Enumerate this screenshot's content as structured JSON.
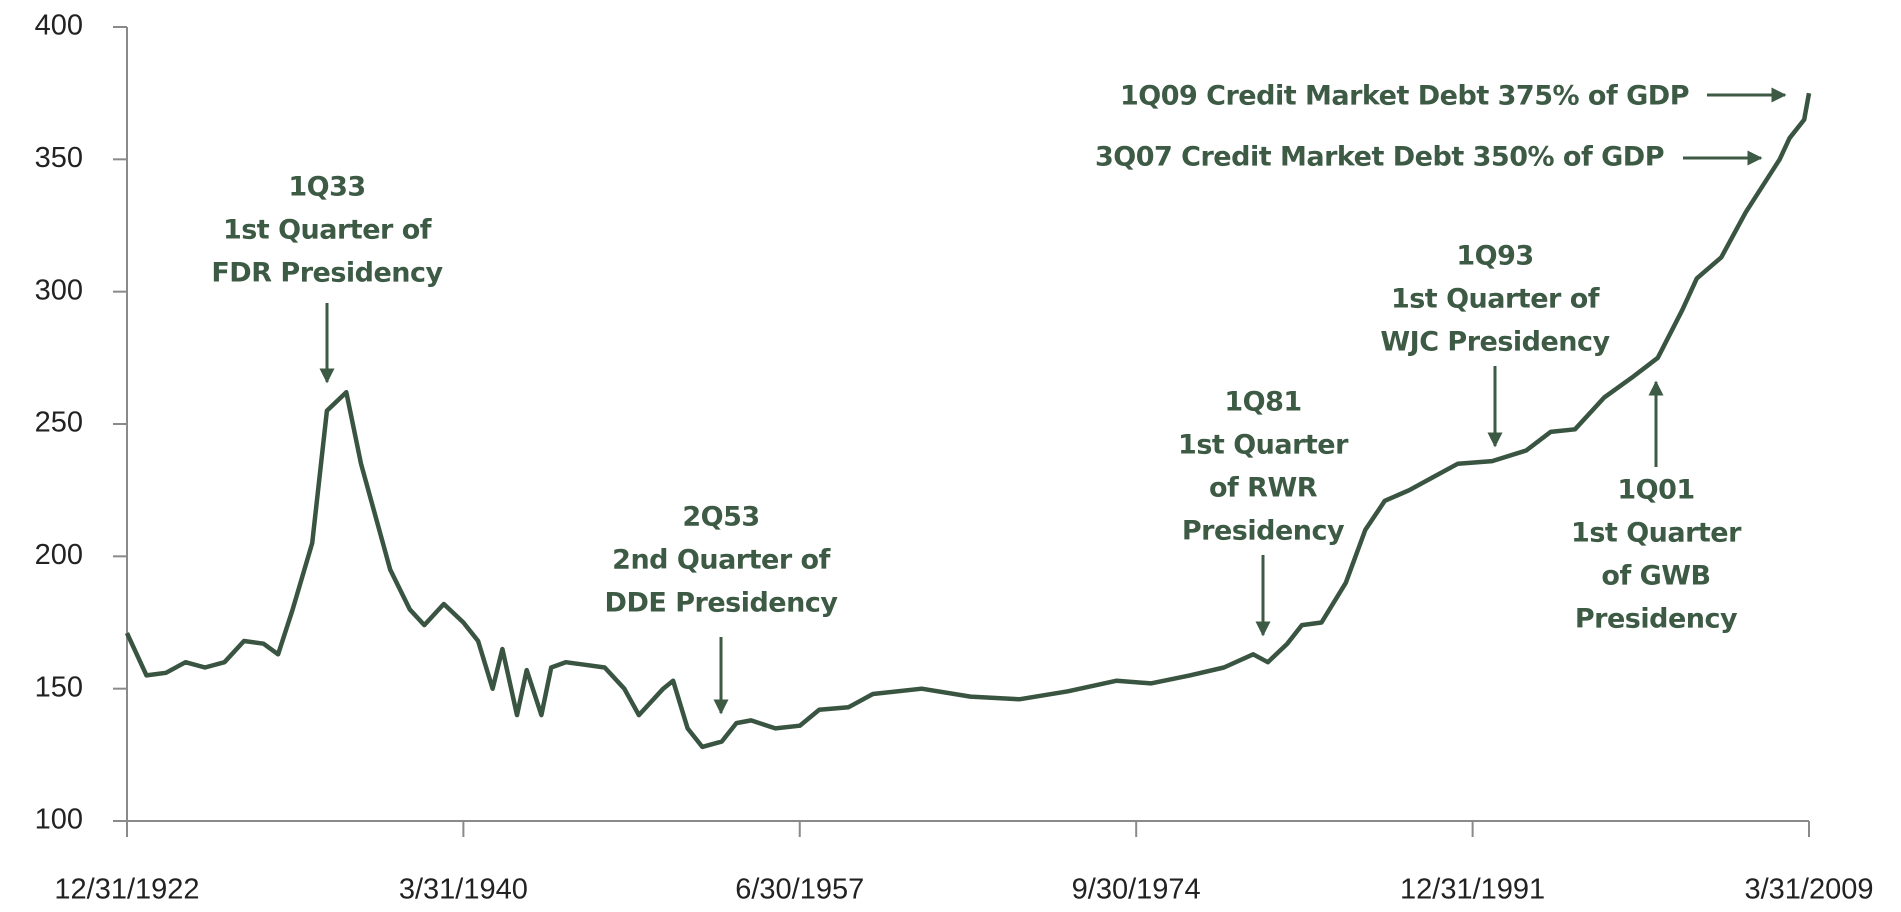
{
  "chart_data": {
    "type": "line",
    "x": [
      "12/31/1922",
      "12/31/1923",
      "12/31/1924",
      "12/31/1925",
      "12/31/1926",
      "12/31/1927",
      "12/31/1928",
      "12/31/1929",
      "9/30/1930",
      "6/30/1931",
      "6/30/1932",
      "3/31/1933",
      "3/31/1934",
      "12/31/1934",
      "9/30/1935",
      "6/30/1936",
      "6/30/1937",
      "3/31/1938",
      "3/31/1939",
      "3/31/1940",
      "12/31/1940",
      "9/30/1941",
      "3/31/1942",
      "12/31/1942",
      "6/30/1943",
      "3/31/1944",
      "9/30/1944",
      "6/30/1945",
      "6/30/1946",
      "6/30/1947",
      "6/30/1948",
      "3/31/1949",
      "6/30/1950",
      "12/31/1950",
      "9/30/1951",
      "6/30/1952",
      "6/30/1953",
      "3/31/1954",
      "12/31/1954",
      "3/31/1956",
      "6/30/1957",
      "6/30/1958",
      "12/31/1959",
      "3/31/1961",
      "9/30/1963",
      "3/31/1966",
      "9/30/1968",
      "3/31/1971",
      "9/30/1973",
      "6/30/1975",
      "6/30/1977",
      "3/31/1979",
      "9/30/1980",
      "6/30/1981",
      "6/30/1982",
      "3/31/1983",
      "3/31/1984",
      "6/30/1985",
      "6/30/1986",
      "6/30/1987",
      "9/30/1988",
      "12/31/1989",
      "3/31/1991",
      "12/31/1992",
      "9/30/1994",
      "12/31/1995",
      "3/31/1997",
      "9/30/1998",
      "3/31/2000",
      "6/30/2001",
      "9/30/2002",
      "6/30/2003",
      "9/30/2004",
      "12/31/2005",
      "9/30/2007",
      "3/31/2008",
      "12/31/2008",
      "3/31/2009"
    ],
    "series": [
      {
        "color": "#3a5442",
        "values": [
          171,
          155,
          156,
          160,
          158,
          160,
          168,
          167,
          163,
          180,
          205,
          255,
          262,
          235,
          215,
          195,
          180,
          174,
          182,
          175,
          168,
          150,
          165,
          140,
          157,
          140,
          158,
          160,
          159,
          158,
          150,
          140,
          150,
          153,
          135,
          128,
          130,
          137,
          138,
          135,
          136,
          142,
          143,
          148,
          150,
          147,
          146,
          149,
          153,
          152,
          155,
          158,
          163,
          160,
          167,
          174,
          175,
          190,
          210,
          221,
          225,
          230,
          235,
          236,
          240,
          247,
          248,
          260,
          268,
          275,
          293,
          305,
          313,
          330,
          350,
          358,
          365,
          375
        ]
      }
    ],
    "xlim": [
      "12/31/1922",
      "3/31/2009"
    ],
    "xticks": [
      "12/31/1922",
      "3/31/1940",
      "6/30/1957",
      "9/30/1974",
      "12/31/1991",
      "3/31/2009"
    ],
    "ylim": [
      100,
      400
    ],
    "yticks": [
      100,
      150,
      200,
      250,
      300,
      350,
      400
    ],
    "annotations": [
      {
        "lines": [
          "1Q33",
          "1st Quarter of",
          "FDR Presidency"
        ]
      },
      {
        "lines": [
          "2Q53",
          "2nd Quarter of",
          "DDE Presidency"
        ]
      },
      {
        "lines": [
          "1Q81",
          "1st Quarter",
          "of RWR",
          "Presidency"
        ]
      },
      {
        "lines": [
          "1Q93",
          "1st Quarter of",
          "WJC Presidency"
        ]
      },
      {
        "lines": [
          "1Q01",
          "1st Quarter",
          "of GWB",
          "Presidency"
        ]
      },
      {
        "lines": [
          "1Q09 Credit Market Debt 375% of GDP"
        ]
      },
      {
        "lines": [
          "3Q07 Credit Market Debt 350% of GDP"
        ]
      }
    ]
  }
}
